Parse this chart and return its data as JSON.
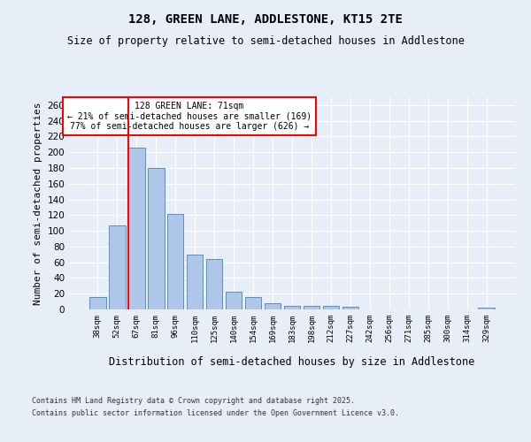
{
  "title1": "128, GREEN LANE, ADDLESTONE, KT15 2TE",
  "title2": "Size of property relative to semi-detached houses in Addlestone",
  "xlabel": "Distribution of semi-detached houses by size in Addlestone",
  "ylabel": "Number of semi-detached properties",
  "categories": [
    "38sqm",
    "52sqm",
    "67sqm",
    "81sqm",
    "96sqm",
    "110sqm",
    "125sqm",
    "140sqm",
    "154sqm",
    "169sqm",
    "183sqm",
    "198sqm",
    "212sqm",
    "227sqm",
    "242sqm",
    "256sqm",
    "271sqm",
    "285sqm",
    "300sqm",
    "314sqm",
    "329sqm"
  ],
  "values": [
    16,
    107,
    206,
    180,
    121,
    70,
    64,
    23,
    16,
    8,
    5,
    5,
    4,
    3,
    0,
    0,
    0,
    0,
    0,
    0,
    2
  ],
  "bar_color": "#aec6e8",
  "bar_edge_color": "#5a8fc2",
  "vline_color": "red",
  "vline_pos": 1.575,
  "annotation_title": "128 GREEN LANE: 71sqm",
  "annotation_line1": "← 21% of semi-detached houses are smaller (169)",
  "annotation_line2": "77% of semi-detached houses are larger (626) →",
  "annotation_box_color": "white",
  "annotation_box_edge": "red",
  "ylim": [
    0,
    270
  ],
  "yticks": [
    0,
    20,
    40,
    60,
    80,
    100,
    120,
    140,
    160,
    180,
    200,
    220,
    240,
    260
  ],
  "footer1": "Contains HM Land Registry data © Crown copyright and database right 2025.",
  "footer2": "Contains public sector information licensed under the Open Government Licence v3.0.",
  "bg_color": "#e8eef8",
  "plot_bg_color": "#e8eef8",
  "title1_fontsize": 10,
  "title2_fontsize": 8.5,
  "ylabel_fontsize": 8,
  "xlabel_fontsize": 8.5
}
